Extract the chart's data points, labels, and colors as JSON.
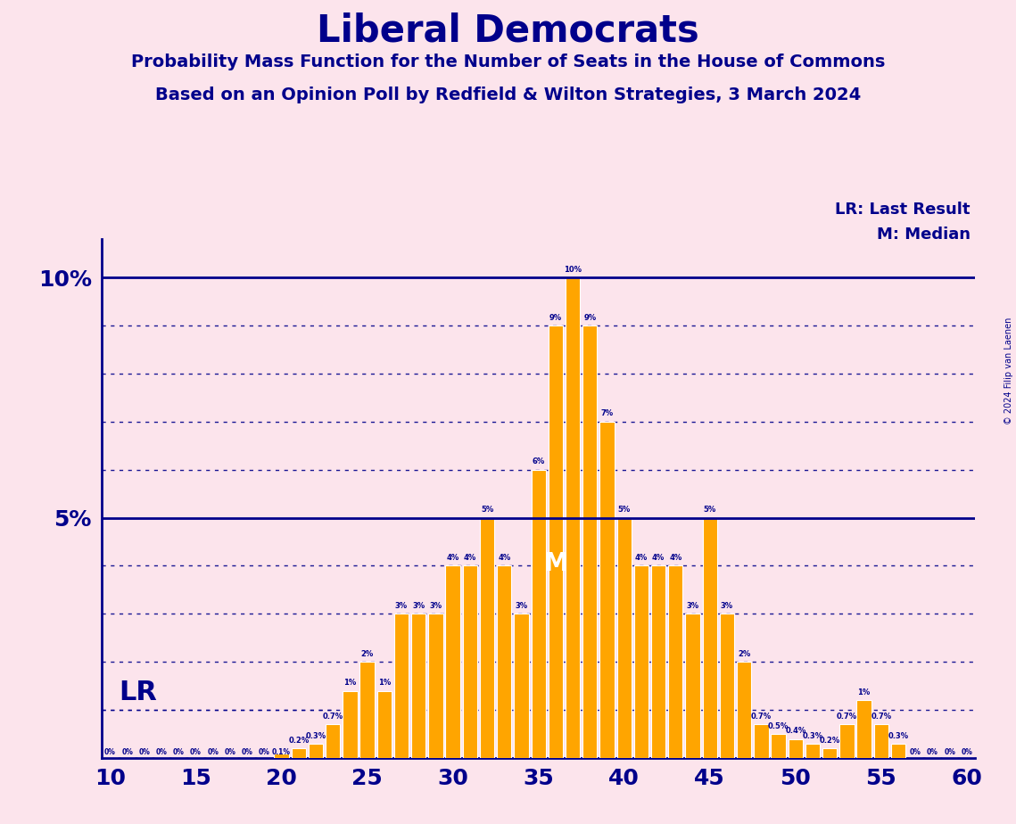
{
  "title": "Liberal Democrats",
  "subtitle1": "Probability Mass Function for the Number of Seats in the House of Commons",
  "subtitle2": "Based on an Opinion Poll by Redfield & Wilton Strategies, 3 March 2024",
  "copyright": "© 2024 Filip van Laenen",
  "background_color": "#fce4ec",
  "bar_color": "#FFA500",
  "bar_edge_color": "#ffffff",
  "title_color": "#00008B",
  "xlim": [
    9.5,
    60.5
  ],
  "ylim": [
    0,
    0.108
  ],
  "x_ticks": [
    10,
    15,
    20,
    25,
    30,
    35,
    40,
    45,
    50,
    55,
    60
  ],
  "lr_seat": 11,
  "lr_label": "LR",
  "median_seat": 36,
  "median_label": "M",
  "legend_lr": "LR: Last Result",
  "legend_m": "M: Median",
  "seats": [
    10,
    11,
    12,
    13,
    14,
    15,
    16,
    17,
    18,
    19,
    20,
    21,
    22,
    23,
    24,
    25,
    26,
    27,
    28,
    29,
    30,
    31,
    32,
    33,
    34,
    35,
    36,
    37,
    38,
    39,
    40,
    41,
    42,
    43,
    44,
    45,
    46,
    47,
    48,
    49,
    50,
    51,
    52,
    53,
    54,
    55,
    56,
    57,
    58,
    59,
    60
  ],
  "probabilities": [
    0.0,
    0.0,
    0.0,
    0.0,
    0.0,
    0.0,
    0.0,
    0.0,
    0.0,
    0.0,
    0.001,
    0.002,
    0.003,
    0.007,
    0.014,
    0.02,
    0.014,
    0.03,
    0.03,
    0.03,
    0.04,
    0.04,
    0.05,
    0.04,
    0.03,
    0.06,
    0.09,
    0.1,
    0.09,
    0.07,
    0.05,
    0.04,
    0.04,
    0.04,
    0.03,
    0.05,
    0.03,
    0.02,
    0.007,
    0.005,
    0.004,
    0.003,
    0.002,
    0.007,
    0.012,
    0.007,
    0.003,
    0.0,
    0.0,
    0.0,
    0.0
  ],
  "solid_lines": [
    0.05,
    0.1
  ],
  "dotted_lines": [
    0.01,
    0.02,
    0.03,
    0.04,
    0.06,
    0.07,
    0.08,
    0.09
  ],
  "lr_line_y": 0.01,
  "lr_line_xmax_seat": 23
}
